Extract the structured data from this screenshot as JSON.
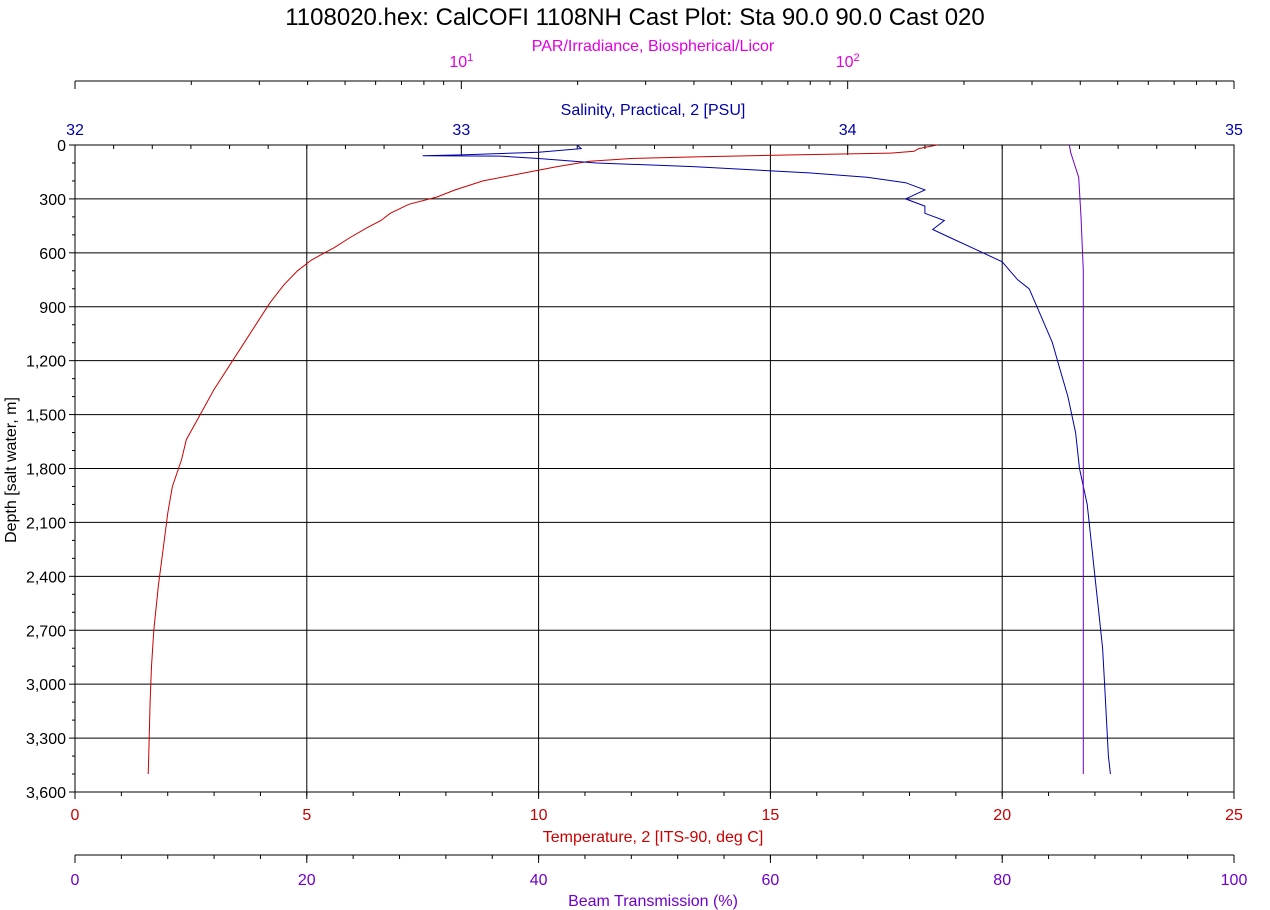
{
  "title": "1108020.hex: CalCOFI 1108NH Cast Plot: Sta 90.0 90.0 Cast 020",
  "colors": {
    "temperature": "#cc0000",
    "salinity": "#0000aa",
    "par": "#e000e0",
    "beam": "#7000cc",
    "depth": "#000000",
    "grid": "#000000"
  },
  "chart_data": {
    "type": "line",
    "title": "1108020.hex: CalCOFI 1108NH Cast Plot: Sta 90.0 90.0 Cast 020",
    "grid": true,
    "y_axis": {
      "label": "Depth [salt water, m]",
      "range": [
        0,
        3600
      ],
      "inverted": true,
      "ticks": [
        0,
        300,
        600,
        900,
        1200,
        1500,
        1800,
        2100,
        2400,
        2700,
        3000,
        3300,
        3600
      ],
      "tick_labels": [
        "0",
        "300",
        "600",
        "900",
        "1,200",
        "1,500",
        "1,800",
        "2,100",
        "2,400",
        "2,700",
        "3,000",
        "3,300",
        "3,600"
      ]
    },
    "x_axes": {
      "temperature": {
        "label": "Temperature, 2 [ITS-90, deg C]",
        "range": [
          0,
          25
        ],
        "ticks": [
          0,
          5,
          10,
          15,
          20,
          25
        ],
        "tick_labels": [
          "0",
          "5",
          "10",
          "15",
          "20",
          "25"
        ]
      },
      "beam": {
        "label": "Beam Transmission (%)",
        "range": [
          0,
          100
        ],
        "ticks": [
          0,
          20,
          40,
          60,
          80,
          100
        ],
        "tick_labels": [
          "0",
          "20",
          "40",
          "60",
          "80",
          "100"
        ]
      },
      "salinity": {
        "label": "Salinity, Practical, 2 [PSU]",
        "range": [
          32,
          35
        ],
        "ticks": [
          32,
          33,
          34,
          35
        ],
        "tick_labels": [
          "32",
          "33",
          "34",
          "35"
        ]
      },
      "par": {
        "label": "PAR/Irradiance, Biospherical/Licor",
        "scale": "log",
        "range": [
          1,
          1000
        ],
        "ticks": [
          10,
          100
        ],
        "tick_labels": [
          {
            "base": "10",
            "exp": "1"
          },
          {
            "base": "10",
            "exp": "2"
          }
        ]
      }
    },
    "series": [
      {
        "key": "temperature",
        "axis": "temperature",
        "points": [
          [
            18.6,
            0
          ],
          [
            18.4,
            10
          ],
          [
            18.2,
            20
          ],
          [
            18.1,
            35
          ],
          [
            17.6,
            45
          ],
          [
            15.5,
            55
          ],
          [
            13.5,
            65
          ],
          [
            12.0,
            75
          ],
          [
            11.1,
            90
          ],
          [
            10.4,
            120
          ],
          [
            9.6,
            160
          ],
          [
            8.8,
            200
          ],
          [
            8.2,
            250
          ],
          [
            7.8,
            290
          ],
          [
            7.2,
            330
          ],
          [
            6.8,
            380
          ],
          [
            6.6,
            420
          ],
          [
            6.3,
            460
          ],
          [
            5.9,
            520
          ],
          [
            5.6,
            570
          ],
          [
            5.1,
            640
          ],
          [
            4.8,
            700
          ],
          [
            4.5,
            780
          ],
          [
            4.2,
            880
          ],
          [
            3.9,
            1000
          ],
          [
            3.6,
            1120
          ],
          [
            3.4,
            1200
          ],
          [
            3.0,
            1360
          ],
          [
            2.7,
            1500
          ],
          [
            2.4,
            1640
          ],
          [
            2.3,
            1750
          ],
          [
            2.1,
            1900
          ],
          [
            2.0,
            2050
          ],
          [
            1.9,
            2250
          ],
          [
            1.8,
            2450
          ],
          [
            1.7,
            2700
          ],
          [
            1.65,
            2900
          ],
          [
            1.62,
            3100
          ],
          [
            1.6,
            3300
          ],
          [
            1.58,
            3500
          ]
        ]
      },
      {
        "key": "salinity",
        "axis": "salinity",
        "points": [
          [
            33.3,
            0
          ],
          [
            33.31,
            20
          ],
          [
            33.2,
            40
          ],
          [
            33.0,
            55
          ],
          [
            32.9,
            60
          ],
          [
            33.1,
            62
          ],
          [
            33.2,
            75
          ],
          [
            33.35,
            100
          ],
          [
            33.6,
            120
          ],
          [
            33.9,
            155
          ],
          [
            34.05,
            180
          ],
          [
            34.15,
            210
          ],
          [
            34.2,
            250
          ],
          [
            34.15,
            300
          ],
          [
            34.2,
            340
          ],
          [
            34.2,
            380
          ],
          [
            34.25,
            420
          ],
          [
            34.22,
            470
          ],
          [
            34.27,
            520
          ],
          [
            34.33,
            580
          ],
          [
            34.4,
            650
          ],
          [
            34.42,
            700
          ],
          [
            34.44,
            750
          ],
          [
            34.47,
            800
          ],
          [
            34.49,
            900
          ],
          [
            34.51,
            1000
          ],
          [
            34.53,
            1100
          ],
          [
            34.55,
            1250
          ],
          [
            34.57,
            1400
          ],
          [
            34.59,
            1600
          ],
          [
            34.6,
            1800
          ],
          [
            34.62,
            2000
          ],
          [
            34.63,
            2200
          ],
          [
            34.64,
            2400
          ],
          [
            34.65,
            2600
          ],
          [
            34.66,
            2800
          ],
          [
            34.665,
            3000
          ],
          [
            34.67,
            3200
          ],
          [
            34.675,
            3400
          ],
          [
            34.68,
            3500
          ]
        ]
      },
      {
        "key": "beam",
        "axis": "beam",
        "points": [
          [
            85.8,
            0
          ],
          [
            85.9,
            40
          ],
          [
            86.1,
            80
          ],
          [
            86.6,
            180
          ],
          [
            86.8,
            400
          ],
          [
            87.0,
            700
          ],
          [
            87.0,
            1200
          ],
          [
            87.0,
            1800
          ],
          [
            87.0,
            2400
          ],
          [
            87.0,
            3000
          ],
          [
            87.0,
            3500
          ]
        ]
      }
    ]
  }
}
